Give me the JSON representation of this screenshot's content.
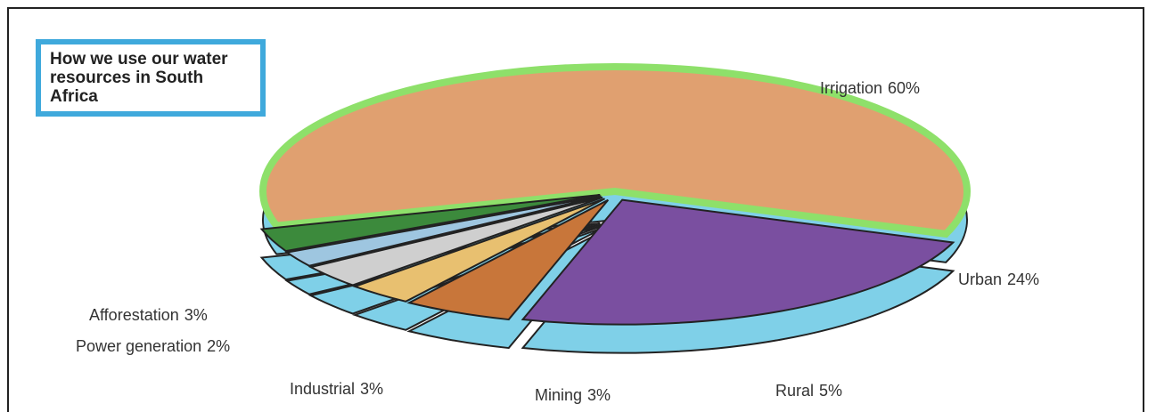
{
  "chart_data": {
    "type": "pie",
    "title": "How we use our water resources in South Africa",
    "categories": [
      "Irrigation",
      "Urban",
      "Rural",
      "Mining",
      "Industrial",
      "Power generation",
      "Afforestation"
    ],
    "values": [
      60,
      24,
      5,
      3,
      3,
      2,
      3
    ],
    "value_labels": [
      "60%",
      "24%",
      "5%",
      "3%",
      "3%",
      "2%",
      "3%"
    ],
    "colors": [
      "#e0a070",
      "#7a4fa0",
      "#c8763a",
      "#e8c070",
      "#cfcfcf",
      "#9ec6e0",
      "#3c8a3c"
    ]
  }
}
